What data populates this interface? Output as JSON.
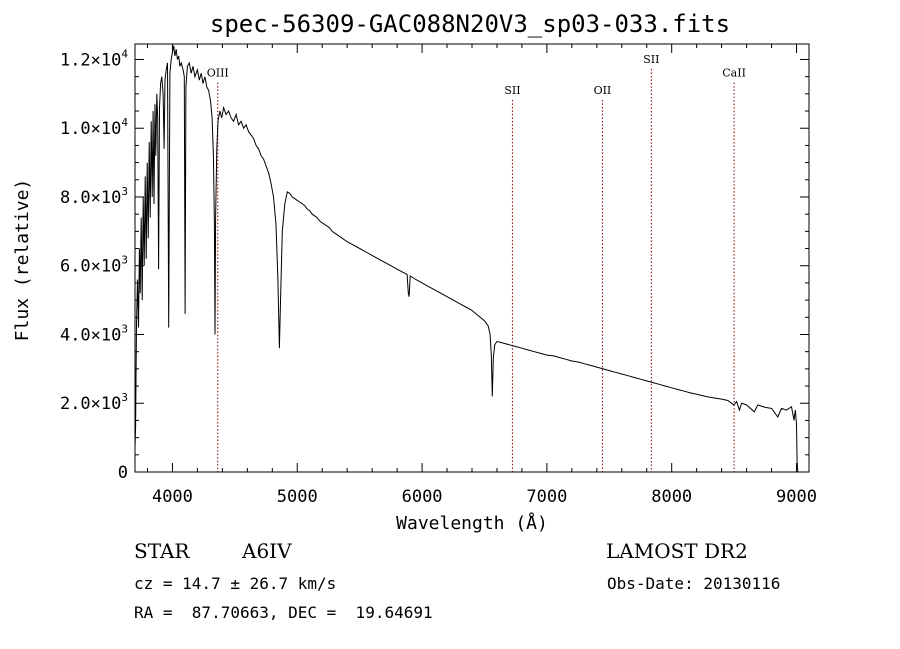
{
  "chart_data": {
    "type": "line",
    "title": "spec-56309-GAC088N20V3_sp03-033.fits",
    "xlabel": "Wavelength (Å)",
    "ylabel": "Flux (relative)",
    "xlim": [
      3700,
      9100
    ],
    "ylim": [
      0,
      12450
    ],
    "x_ticks": [
      4000,
      5000,
      6000,
      7000,
      8000,
      9000
    ],
    "y_ticks": [
      {
        "value": 0,
        "mant": "0",
        "exp": ""
      },
      {
        "value": 2000,
        "mant": "2.0×10",
        "exp": "3"
      },
      {
        "value": 4000,
        "mant": "4.0×10",
        "exp": "3"
      },
      {
        "value": 6000,
        "mant": "6.0×10",
        "exp": "3"
      },
      {
        "value": 8000,
        "mant": "8.0×10",
        "exp": "3"
      },
      {
        "value": 10000,
        "mant": "1.0×10",
        "exp": "4"
      },
      {
        "value": 12000,
        "mant": "1.2×10",
        "exp": "4"
      }
    ],
    "line_color": "#000000",
    "marker_color": "#8b0000",
    "line_markers": [
      {
        "label": "OIII",
        "x": 4363,
        "label_y": 11500
      },
      {
        "label": "SII",
        "x": 6724,
        "label_y": 11000
      },
      {
        "label": "OII",
        "x": 7445,
        "label_y": 11000
      },
      {
        "label": "SII",
        "x": 7837,
        "label_y": 11900
      },
      {
        "label": "CaII",
        "x": 8500,
        "label_y": 11500
      }
    ],
    "series": [
      {
        "values": [
          [
            3700,
            700
          ],
          [
            3705,
            1300
          ],
          [
            3712,
            4300
          ],
          [
            3720,
            5600
          ],
          [
            3728,
            4200
          ],
          [
            3735,
            6500
          ],
          [
            3742,
            5200
          ],
          [
            3750,
            7400
          ],
          [
            3758,
            5000
          ],
          [
            3766,
            8000
          ],
          [
            3774,
            6000
          ],
          [
            3782,
            8600
          ],
          [
            3790,
            6200
          ],
          [
            3798,
            9000
          ],
          [
            3806,
            6800
          ],
          [
            3814,
            9600
          ],
          [
            3822,
            7400
          ],
          [
            3830,
            10200
          ],
          [
            3838,
            8000
          ],
          [
            3845,
            10500
          ],
          [
            3852,
            7800
          ],
          [
            3860,
            10700
          ],
          [
            3867,
            9200
          ],
          [
            3875,
            11000
          ],
          [
            3882,
            10300
          ],
          [
            3889,
            5900
          ],
          [
            3896,
            10600
          ],
          [
            3905,
            11300
          ],
          [
            3915,
            11500
          ],
          [
            3925,
            11000
          ],
          [
            3933,
            9400
          ],
          [
            3940,
            11400
          ],
          [
            3950,
            11700
          ],
          [
            3960,
            11900
          ],
          [
            3970,
            4200
          ],
          [
            3980,
            11600
          ],
          [
            3990,
            12000
          ],
          [
            4000,
            12200
          ],
          [
            4010,
            12400
          ],
          [
            4020,
            12100
          ],
          [
            4030,
            12300
          ],
          [
            4040,
            12000
          ],
          [
            4050,
            12100
          ],
          [
            4060,
            11800
          ],
          [
            4070,
            11900
          ],
          [
            4085,
            11700
          ],
          [
            4095,
            11500
          ],
          [
            4101,
            4600
          ],
          [
            4108,
            11200
          ],
          [
            4120,
            11800
          ],
          [
            4135,
            11900
          ],
          [
            4150,
            11600
          ],
          [
            4165,
            11800
          ],
          [
            4180,
            11500
          ],
          [
            4200,
            11700
          ],
          [
            4215,
            11400
          ],
          [
            4230,
            11600
          ],
          [
            4245,
            11300
          ],
          [
            4260,
            11500
          ],
          [
            4275,
            11200
          ],
          [
            4290,
            11100
          ],
          [
            4305,
            10800
          ],
          [
            4318,
            10300
          ],
          [
            4328,
            9200
          ],
          [
            4336,
            7200
          ],
          [
            4341,
            4000
          ],
          [
            4346,
            7400
          ],
          [
            4355,
            9400
          ],
          [
            4365,
            10200
          ],
          [
            4380,
            10500
          ],
          [
            4395,
            10300
          ],
          [
            4410,
            10600
          ],
          [
            4430,
            10400
          ],
          [
            4450,
            10500
          ],
          [
            4470,
            10300
          ],
          [
            4490,
            10200
          ],
          [
            4510,
            10400
          ],
          [
            4530,
            10100
          ],
          [
            4550,
            10200
          ],
          [
            4570,
            10000
          ],
          [
            4590,
            10100
          ],
          [
            4610,
            9900
          ],
          [
            4630,
            9800
          ],
          [
            4650,
            9700
          ],
          [
            4670,
            9500
          ],
          [
            4690,
            9400
          ],
          [
            4710,
            9200
          ],
          [
            4730,
            9100
          ],
          [
            4750,
            8900
          ],
          [
            4770,
            8700
          ],
          [
            4790,
            8400
          ],
          [
            4810,
            8000
          ],
          [
            4830,
            7200
          ],
          [
            4845,
            5600
          ],
          [
            4857,
            3600
          ],
          [
            4867,
            5200
          ],
          [
            4880,
            7000
          ],
          [
            4900,
            7800
          ],
          [
            4920,
            8150
          ],
          [
            4940,
            8100
          ],
          [
            4960,
            8000
          ],
          [
            4980,
            7950
          ],
          [
            5000,
            7900
          ],
          [
            5020,
            7850
          ],
          [
            5040,
            7800
          ],
          [
            5060,
            7750
          ],
          [
            5080,
            7650
          ],
          [
            5100,
            7600
          ],
          [
            5120,
            7500
          ],
          [
            5140,
            7450
          ],
          [
            5160,
            7400
          ],
          [
            5180,
            7300
          ],
          [
            5200,
            7250
          ],
          [
            5220,
            7200
          ],
          [
            5240,
            7150
          ],
          [
            5260,
            7100
          ],
          [
            5280,
            7000
          ],
          [
            5300,
            6950
          ],
          [
            5320,
            6900
          ],
          [
            5340,
            6850
          ],
          [
            5360,
            6800
          ],
          [
            5380,
            6750
          ],
          [
            5400,
            6700
          ],
          [
            5450,
            6600
          ],
          [
            5500,
            6500
          ],
          [
            5550,
            6400
          ],
          [
            5600,
            6300
          ],
          [
            5650,
            6200
          ],
          [
            5700,
            6100
          ],
          [
            5750,
            6000
          ],
          [
            5800,
            5900
          ],
          [
            5850,
            5800
          ],
          [
            5880,
            5750
          ],
          [
            5890,
            5200
          ],
          [
            5896,
            5100
          ],
          [
            5905,
            5700
          ],
          [
            5950,
            5600
          ],
          [
            6000,
            5500
          ],
          [
            6050,
            5400
          ],
          [
            6100,
            5300
          ],
          [
            6150,
            5200
          ],
          [
            6200,
            5100
          ],
          [
            6250,
            5000
          ],
          [
            6300,
            4900
          ],
          [
            6350,
            4800
          ],
          [
            6400,
            4700
          ],
          [
            6450,
            4550
          ],
          [
            6500,
            4400
          ],
          [
            6530,
            4250
          ],
          [
            6545,
            4000
          ],
          [
            6555,
            3400
          ],
          [
            6563,
            2200
          ],
          [
            6571,
            3300
          ],
          [
            6582,
            3700
          ],
          [
            6600,
            3800
          ],
          [
            6650,
            3750
          ],
          [
            6700,
            3700
          ],
          [
            6750,
            3650
          ],
          [
            6800,
            3600
          ],
          [
            6850,
            3550
          ],
          [
            6900,
            3500
          ],
          [
            6950,
            3450
          ],
          [
            7000,
            3400
          ],
          [
            7050,
            3380
          ],
          [
            7100,
            3330
          ],
          [
            7150,
            3280
          ],
          [
            7200,
            3230
          ],
          [
            7250,
            3200
          ],
          [
            7300,
            3150
          ],
          [
            7350,
            3100
          ],
          [
            7400,
            3050
          ],
          [
            7450,
            3000
          ],
          [
            7500,
            2950
          ],
          [
            7550,
            2900
          ],
          [
            7600,
            2850
          ],
          [
            7650,
            2800
          ],
          [
            7700,
            2750
          ],
          [
            7750,
            2700
          ],
          [
            7800,
            2650
          ],
          [
            7850,
            2600
          ],
          [
            7900,
            2550
          ],
          [
            7950,
            2500
          ],
          [
            8000,
            2450
          ],
          [
            8050,
            2400
          ],
          [
            8100,
            2350
          ],
          [
            8150,
            2300
          ],
          [
            8200,
            2260
          ],
          [
            8250,
            2220
          ],
          [
            8300,
            2180
          ],
          [
            8350,
            2150
          ],
          [
            8400,
            2120
          ],
          [
            8450,
            2080
          ],
          [
            8498,
            1950
          ],
          [
            8520,
            2050
          ],
          [
            8542,
            1800
          ],
          [
            8560,
            2000
          ],
          [
            8600,
            1950
          ],
          [
            8662,
            1750
          ],
          [
            8690,
            1950
          ],
          [
            8750,
            1880
          ],
          [
            8800,
            1850
          ],
          [
            8850,
            1600
          ],
          [
            8880,
            1850
          ],
          [
            8920,
            1800
          ],
          [
            8960,
            1900
          ],
          [
            8980,
            1500
          ],
          [
            8990,
            1800
          ],
          [
            9000,
            1400
          ],
          [
            9005,
            300
          ],
          [
            9010,
            0
          ]
        ]
      }
    ]
  },
  "info": {
    "object_class": "STAR",
    "subclass": "A6IV",
    "survey": "LAMOST DR2",
    "redshift": "cz = 14.7 ± 26.7 km/s",
    "obs_date": "Obs-Date: 20130116",
    "coords": "RA =  87.70663, DEC =  19.64691"
  }
}
